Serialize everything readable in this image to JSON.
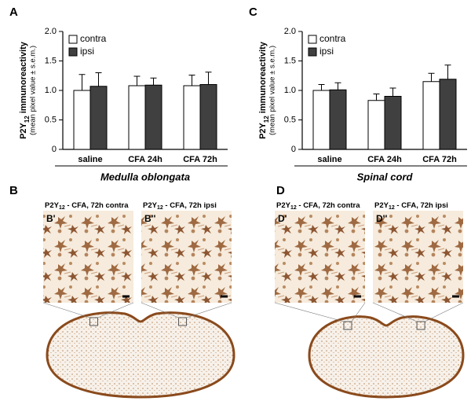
{
  "chart_data": [
    {
      "type": "bar",
      "panel": "A",
      "ylabel": [
        "P2Y",
        "12",
        " immunoreactivity"
      ],
      "ylabel2": "(mean pixel value ± s.e.m.)",
      "categories": [
        "saline",
        "CFA 24h",
        "CFA 72h"
      ],
      "series": [
        {
          "name": "contra",
          "color": "#ffffff",
          "values": [
            1.0,
            1.08,
            1.08
          ],
          "errors": [
            0.27,
            0.16,
            0.18
          ]
        },
        {
          "name": "ipsi",
          "color": "#404040",
          "values": [
            1.07,
            1.09,
            1.1
          ],
          "errors": [
            0.23,
            0.12,
            0.21
          ]
        }
      ],
      "ylim": [
        0,
        2
      ],
      "yticks": [
        0,
        0.5,
        {
          "value": 1,
          "label": "1.0"
        },
        1.5,
        {
          "value": 2,
          "label": "2.0"
        }
      ],
      "group_label": "Medulla oblongata",
      "legend": "upper left"
    },
    {
      "type": "bar",
      "panel": "C",
      "ylabel": [
        "P2Y",
        "12",
        " immunoreactivity"
      ],
      "ylabel2": "(mean pixel value ± s.e.m.)",
      "categories": [
        "saline",
        "CFA 24h",
        "CFA 72h"
      ],
      "series": [
        {
          "name": "contra",
          "color": "#ffffff",
          "values": [
            1.0,
            0.83,
            1.15
          ],
          "errors": [
            0.1,
            0.11,
            0.14
          ]
        },
        {
          "name": "ipsi",
          "color": "#404040",
          "values": [
            1.01,
            0.9,
            1.19
          ],
          "errors": [
            0.12,
            0.14,
            0.24
          ]
        }
      ],
      "ylim": [
        0,
        2
      ],
      "yticks": [
        0,
        0.5,
        {
          "value": 1,
          "label": "1.0"
        },
        1.5,
        {
          "value": 2,
          "label": "2.0"
        }
      ],
      "group_label": "Spinal cord",
      "legend": "upper left"
    }
  ],
  "image_panels": [
    {
      "panel": "B",
      "images": [
        {
          "tag": "B'",
          "title": [
            "P2Y",
            "12",
            " - CFA, 72h contra"
          ]
        },
        {
          "tag": "B''",
          "title": [
            "P2Y",
            "12",
            " - CFA, 72h ipsi"
          ]
        }
      ]
    },
    {
      "panel": "D",
      "images": [
        {
          "tag": "D'",
          "title": [
            "P2Y",
            "12",
            " - CFA, 72h contra"
          ]
        },
        {
          "tag": "D''",
          "title": [
            "P2Y",
            "12",
            " - CFA, 72h ipsi"
          ]
        }
      ]
    }
  ]
}
